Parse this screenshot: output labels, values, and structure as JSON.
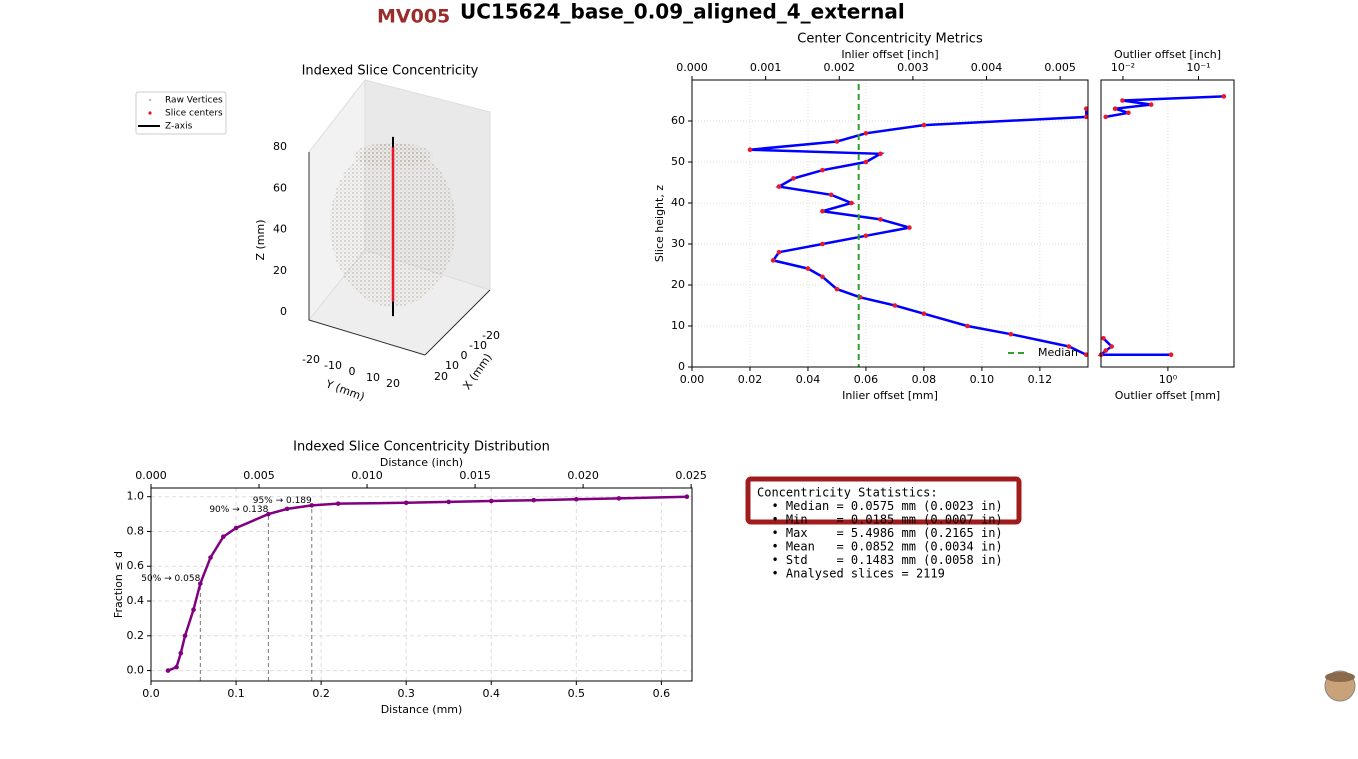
{
  "header": {
    "id": "MV005",
    "title": "UC15624_base_0.09_aligned_4_external"
  },
  "chart_data": [
    {
      "type": "scatter3d",
      "title": "Indexed Slice Concentricity",
      "zlabel": "Z (mm)",
      "ylabel": "Y (mm)",
      "xlabel": "X (mm)",
      "zticks": [
        0,
        20,
        40,
        60,
        80
      ],
      "yticks": [
        -20,
        -10,
        0,
        10,
        20
      ],
      "xticks": [
        -20,
        -10,
        0,
        10,
        20
      ],
      "series": [
        {
          "name": "Raw Vertices",
          "color": "#8b7355"
        },
        {
          "name": "Slice centers",
          "color": "#e8192c",
          "z": [
            5,
            80
          ]
        },
        {
          "name": "Z-axis",
          "color": "#000000",
          "z": [
            -2,
            85
          ]
        }
      ]
    },
    {
      "type": "line",
      "title": "Center Concentricity Metrics",
      "xlabel": "Inlier offset [mm]",
      "x2label": "Inlier offset [inch]",
      "ylabel": "Slice height, z",
      "xlim": [
        0,
        0.1366
      ],
      "x2lim": [
        0,
        0.005378
      ],
      "ylim": [
        0,
        70
      ],
      "xticks": [
        {
          "value": 0,
          "label": "0.00"
        },
        {
          "value": 0.02,
          "label": "0.02"
        },
        {
          "value": 0.04,
          "label": "0.04"
        },
        {
          "value": 0.06,
          "label": "0.06"
        },
        {
          "value": 0.08,
          "label": "0.08"
        },
        {
          "value": 0.1,
          "label": "0.10"
        },
        {
          "value": 0.12,
          "label": "0.12"
        }
      ],
      "x2ticks": [
        {
          "value": 0,
          "label": "0.000"
        },
        {
          "value": 0.001,
          "label": "0.001"
        },
        {
          "value": 0.002,
          "label": "0.002"
        },
        {
          "value": 0.003,
          "label": "0.003"
        },
        {
          "value": 0.004,
          "label": "0.004"
        },
        {
          "value": 0.005,
          "label": "0.005"
        }
      ],
      "yticks": [
        0,
        10,
        20,
        30,
        40,
        50,
        60
      ],
      "grid": true,
      "legend": "lower right",
      "series": [
        {
          "color": "#0000ff",
          "marker_color": "#e8192c",
          "x": [
            0.136,
            0.13,
            0.11,
            0.095,
            0.08,
            0.07,
            0.058,
            0.05,
            0.045,
            0.04,
            0.028,
            0.03,
            0.045,
            0.06,
            0.075,
            0.065,
            0.045,
            0.055,
            0.048,
            0.03,
            0.035,
            0.045,
            0.06,
            0.065,
            0.02,
            0.05,
            0.06,
            0.08,
            0.136,
            0.136
          ],
          "y": [
            3,
            5,
            8,
            10,
            13,
            15,
            17,
            19,
            22,
            24,
            26,
            28,
            30,
            32,
            34,
            36,
            38,
            40,
            42,
            44,
            46,
            48,
            50,
            52,
            53,
            55,
            57,
            59,
            61,
            63
          ]
        }
      ],
      "vlines": [
        {
          "name": "Median",
          "x": 0.0575,
          "color": "#2ca02c"
        }
      ]
    },
    {
      "type": "line",
      "xlabel": "Outlier offset [mm]",
      "x2label": "Outlier offset [inch]",
      "xscale": "log",
      "x2scale": "log",
      "xlim": [
        0.13,
        7.5
      ],
      "x2lim": [
        0.005118,
        0.29528
      ],
      "ylim": [
        0,
        70
      ],
      "xticks": [
        {
          "value": 1,
          "label": "10⁰"
        }
      ],
      "x2ticks": [
        {
          "value": 0.01,
          "label": "10⁻²"
        },
        {
          "value": 0.1,
          "label": "10⁻¹"
        }
      ],
      "grid": true,
      "series": [
        {
          "color": "#0000ff",
          "marker_color": "#e8192c",
          "x": [
            0.14,
            0.18,
            0.15,
            0.13,
            1.1,
            null,
            0.15,
            0.3,
            0.2,
            0.6,
            0.25,
            5.5
          ],
          "y": [
            7,
            5,
            4,
            3,
            3,
            null,
            61,
            62,
            63,
            64,
            65,
            66
          ]
        }
      ]
    },
    {
      "type": "line",
      "title": "Indexed Slice Concentricity Distribution",
      "xlabel": "Distance (mm)",
      "x2label": "Distance (inch)",
      "ylabel": "Fraction ≤ d",
      "xlim": [
        0,
        0.636
      ],
      "x2lim": [
        0,
        0.02504
      ],
      "ylim": [
        -0.06,
        1.05
      ],
      "xticks": [
        {
          "value": 0,
          "label": "0.0"
        },
        {
          "value": 0.1,
          "label": "0.1"
        },
        {
          "value": 0.2,
          "label": "0.2"
        },
        {
          "value": 0.3,
          "label": "0.3"
        },
        {
          "value": 0.4,
          "label": "0.4"
        },
        {
          "value": 0.5,
          "label": "0.5"
        },
        {
          "value": 0.6,
          "label": "0.6"
        }
      ],
      "x2ticks": [
        {
          "value": 0,
          "label": "0.000"
        },
        {
          "value": 0.005,
          "label": "0.005"
        },
        {
          "value": 0.01,
          "label": "0.010"
        },
        {
          "value": 0.015,
          "label": "0.015"
        },
        {
          "value": 0.02,
          "label": "0.020"
        },
        {
          "value": 0.025,
          "label": "0.025"
        }
      ],
      "yticks": [
        {
          "value": 0,
          "label": "0.0"
        },
        {
          "value": 0.2,
          "label": "0.2"
        },
        {
          "value": 0.4,
          "label": "0.4"
        },
        {
          "value": 0.6,
          "label": "0.6"
        },
        {
          "value": 0.8,
          "label": "0.8"
        },
        {
          "value": 1,
          "label": "1.0"
        }
      ],
      "grid": true,
      "series": [
        {
          "color": "#800080",
          "marker_color": "#800080",
          "x": [
            0.02,
            0.03,
            0.035,
            0.04,
            0.05,
            0.058,
            0.07,
            0.085,
            0.1,
            0.138,
            0.16,
            0.189,
            0.22,
            0.3,
            0.35,
            0.4,
            0.45,
            0.5,
            0.55,
            0.63
          ],
          "y": [
            0,
            0.02,
            0.1,
            0.2,
            0.35,
            0.5,
            0.65,
            0.77,
            0.82,
            0.9,
            0.93,
            0.95,
            0.96,
            0.965,
            0.97,
            0.975,
            0.98,
            0.985,
            0.99,
            1.0
          ]
        }
      ],
      "annotations": [
        {
          "label": "50% → 0.058",
          "x": 0.058,
          "y": 0.53
        },
        {
          "label": "90% → 0.138",
          "x": 0.138,
          "y": 0.925
        },
        {
          "label": "95% → 0.189",
          "x": 0.189,
          "y": 0.977
        }
      ]
    }
  ],
  "stats": {
    "lines": [
      "Concentricity Statistics:",
      "  • Median = 0.0575 mm (0.0023 in)",
      "  • Min    = 0.0185 mm (0.0007 in)",
      "  • Max    = 5.4986 mm (0.2165 in)",
      "  • Mean   = 0.0852 mm (0.0034 in)",
      "  • Std    = 0.1483 mm (0.0058 in)",
      "  • Analysed slices = 2119"
    ]
  }
}
